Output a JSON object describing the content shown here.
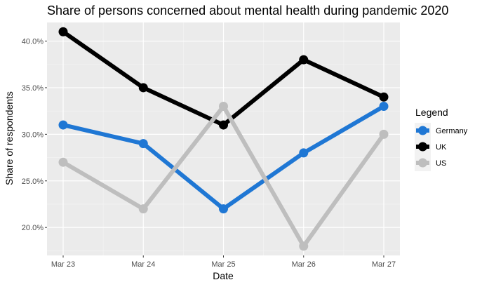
{
  "chart_data": {
    "type": "line",
    "title": "Share of persons concerned about mental health during pandemic 2020",
    "xlabel": "Date",
    "ylabel": "Share of respondents",
    "categories": [
      "Mar 23",
      "Mar 24",
      "Mar 25",
      "Mar 26",
      "Mar 27"
    ],
    "ylim": [
      0.17,
      0.42
    ],
    "yticks": [
      0.2,
      0.25,
      0.3,
      0.35,
      0.4
    ],
    "ytick_labels": [
      "20.0%",
      "25.0%",
      "30.0%",
      "35.0%",
      "40.0%"
    ],
    "grid": true,
    "legend": {
      "title": "Legend",
      "placement": "right"
    },
    "series": [
      {
        "name": "Germany",
        "color": "#1f77d4",
        "values": [
          0.31,
          0.29,
          0.22,
          0.28,
          0.33
        ]
      },
      {
        "name": "UK",
        "color": "#000000",
        "values": [
          0.41,
          0.35,
          0.31,
          0.38,
          0.34
        ]
      },
      {
        "name": "US",
        "color": "#bebebe",
        "values": [
          0.27,
          0.22,
          0.33,
          0.18,
          0.3
        ]
      }
    ]
  }
}
